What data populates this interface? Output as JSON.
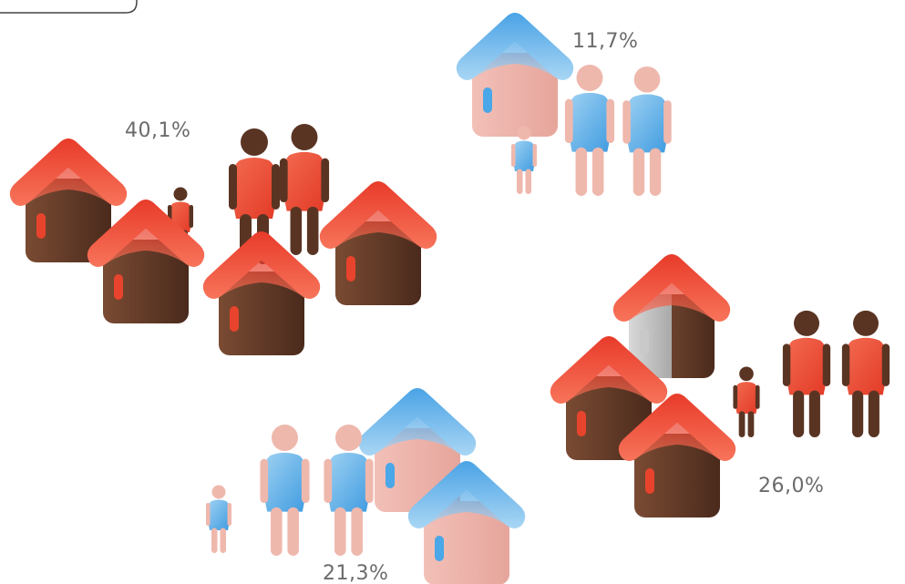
{
  "groups": [
    {
      "label": "40,1%"
    },
    {
      "label": "11,7%"
    },
    {
      "label": "26,0%"
    },
    {
      "label": "21,3%"
    }
  ]
}
